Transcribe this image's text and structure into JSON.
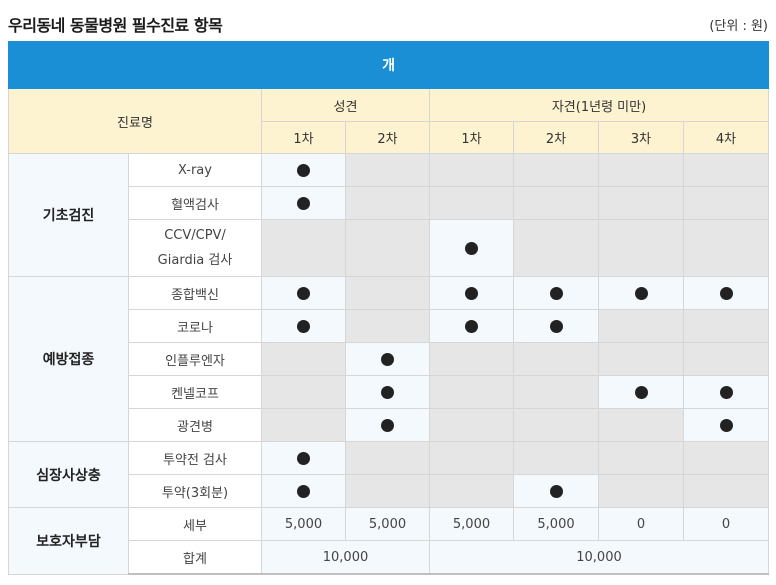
{
  "title": "우리동네 동물병원 필수진료 항목",
  "unit": "(단위 : 원)",
  "banner": "개",
  "headers": {
    "name": "진료명",
    "adult": "성견",
    "puppy": "자견(1년령 미만)",
    "doses": [
      "1차",
      "2차",
      "1차",
      "2차",
      "3차",
      "4차"
    ]
  },
  "categories": {
    "basic": "기초검진",
    "vaccine": "예방접종",
    "heartworm": "심장사상충",
    "copay": "보호자부담"
  },
  "items": {
    "xray": "X-ray",
    "blood": "혈액검사",
    "ccv_line1": "CCV/CPV/",
    "ccv_line2": "Giardia 검사",
    "combo": "종합백신",
    "corona": "코로나",
    "influenza": "인플루엔자",
    "kennel": "켄넬코프",
    "rabies": "광견병",
    "pre_test": "투약전 검사",
    "dose": "투약(3회분)",
    "detail": "세부",
    "total": "합계"
  },
  "costs": [
    "5,000",
    "5,000",
    "5,000",
    "5,000",
    "0",
    "0"
  ],
  "totals": {
    "adult": "10,000",
    "puppy": "10,000"
  }
}
